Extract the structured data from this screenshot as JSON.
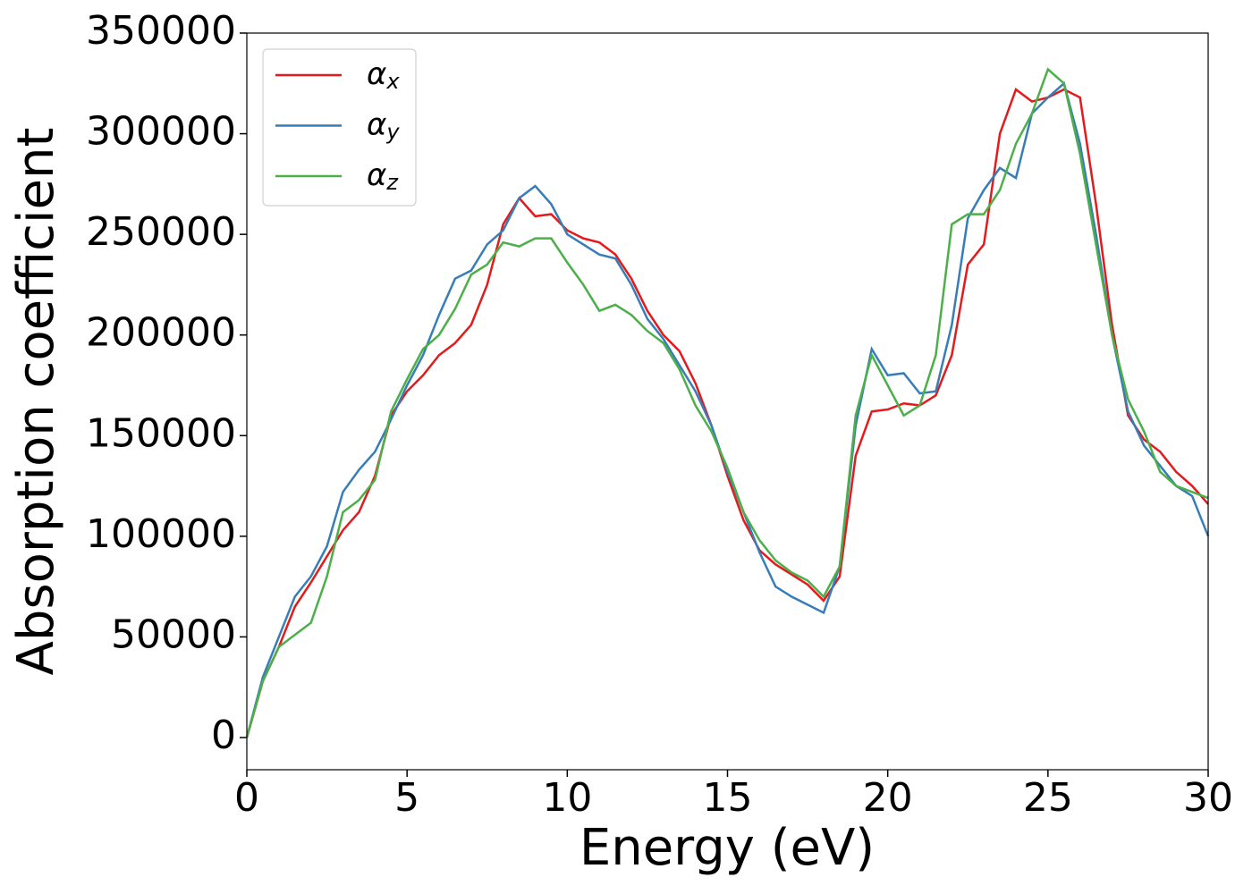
{
  "chart_data": {
    "type": "line",
    "xlabel": "Energy (eV)",
    "ylabel": "Absorption coefficient",
    "x": [
      0,
      0.5,
      1,
      1.5,
      2,
      2.5,
      3,
      3.5,
      4,
      4.5,
      5,
      5.5,
      6,
      6.5,
      7,
      7.5,
      8,
      8.5,
      9,
      9.5,
      10,
      10.5,
      11,
      11.5,
      12,
      12.5,
      13,
      13.5,
      14,
      14.5,
      15,
      15.5,
      16,
      16.5,
      17,
      17.5,
      18,
      18.5,
      19,
      19.5,
      20,
      20.5,
      21,
      21.5,
      22,
      22.5,
      23,
      23.5,
      24,
      24.5,
      25,
      25.5,
      26,
      26.5,
      27,
      27.5,
      28,
      28.5,
      29,
      29.5,
      30
    ],
    "series": [
      {
        "name": "αx",
        "color": "#e41a1c",
        "values": [
          0,
          28000,
          45000,
          65000,
          77000,
          90000,
          103000,
          112000,
          130000,
          160000,
          172000,
          180000,
          190000,
          196000,
          205000,
          225000,
          255000,
          268000,
          259000,
          260000,
          252000,
          248000,
          246000,
          240000,
          228000,
          212000,
          200000,
          192000,
          176000,
          155000,
          130000,
          108000,
          93000,
          86000,
          81000,
          76000,
          68000,
          80000,
          140000,
          162000,
          163000,
          166000,
          165000,
          170000,
          190000,
          235000,
          245000,
          300000,
          322000,
          316000,
          318000,
          322000,
          318000,
          265000,
          205000,
          160000,
          148000,
          142000,
          132000,
          125000,
          116000
        ]
      },
      {
        "name": "αy",
        "color": "#377eb8",
        "values": [
          0,
          30000,
          50000,
          70000,
          80000,
          95000,
          122000,
          133000,
          142000,
          158000,
          175000,
          190000,
          210000,
          228000,
          232000,
          245000,
          252000,
          268000,
          274000,
          265000,
          250000,
          245000,
          240000,
          238000,
          225000,
          208000,
          198000,
          185000,
          172000,
          155000,
          132000,
          112000,
          92000,
          75000,
          70000,
          66000,
          62000,
          85000,
          155000,
          193000,
          180000,
          181000,
          171000,
          172000,
          205000,
          258000,
          272000,
          283000,
          278000,
          310000,
          318000,
          325000,
          295000,
          250000,
          200000,
          162000,
          145000,
          135000,
          125000,
          120000,
          100000
        ]
      },
      {
        "name": "αz",
        "color": "#4daf4a",
        "values": [
          0,
          28000,
          45000,
          51000,
          57000,
          80000,
          112000,
          118000,
          128000,
          162000,
          178000,
          193000,
          200000,
          213000,
          230000,
          235000,
          246000,
          244000,
          248000,
          248000,
          236000,
          225000,
          212000,
          215000,
          210000,
          202000,
          196000,
          183000,
          165000,
          152000,
          134000,
          112000,
          98000,
          88000,
          82000,
          78000,
          70000,
          85000,
          160000,
          190000,
          175000,
          160000,
          165000,
          190000,
          255000,
          260000,
          260000,
          272000,
          295000,
          310000,
          332000,
          325000,
          290000,
          245000,
          200000,
          168000,
          152000,
          132000,
          125000,
          122000,
          119000
        ]
      }
    ],
    "xlim": [
      0,
      30
    ],
    "xticks": [
      0,
      5,
      10,
      15,
      20,
      25,
      30
    ],
    "ylim": [
      -16000,
      350000
    ],
    "yticks": [
      0,
      50000,
      100000,
      150000,
      200000,
      250000,
      300000,
      350000
    ],
    "legend": "upper left"
  }
}
